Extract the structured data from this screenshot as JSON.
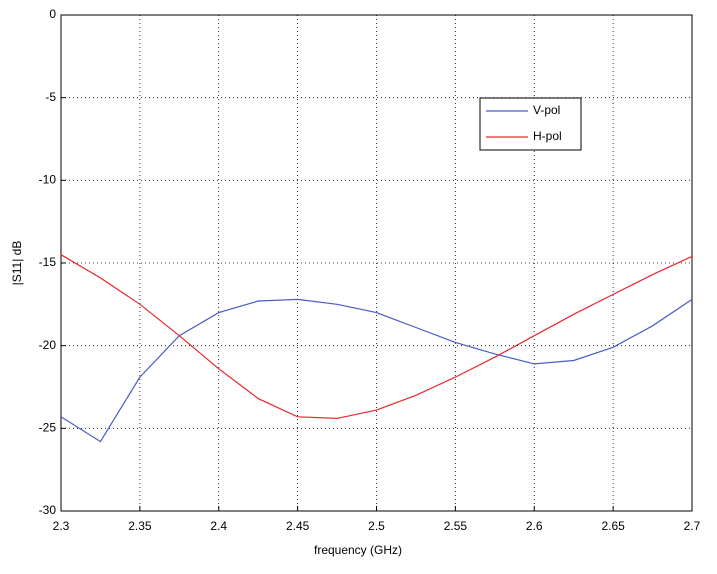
{
  "chart_data": {
    "type": "line",
    "xlabel": "frequency (GHz)",
    "ylabel": "|S11| dB",
    "x": [
      2.3,
      2.325,
      2.35,
      2.375,
      2.4,
      2.425,
      2.45,
      2.475,
      2.5,
      2.525,
      2.55,
      2.575,
      2.6,
      2.625,
      2.65,
      2.675,
      2.7
    ],
    "series": [
      {
        "name": "V-pol",
        "color": "#4a5bc4",
        "values": [
          -24.3,
          -25.8,
          -21.9,
          -19.4,
          -18.0,
          -17.3,
          -17.2,
          -17.5,
          -18.0,
          -18.9,
          -19.8,
          -20.5,
          -21.1,
          -20.9,
          -20.1,
          -18.8,
          -17.2
        ]
      },
      {
        "name": "H-pol",
        "color": "#e8272b",
        "values": [
          -14.5,
          -15.9,
          -17.5,
          -19.4,
          -21.4,
          -23.2,
          -24.3,
          -24.4,
          -23.9,
          -23.0,
          -21.9,
          -20.7,
          -19.4,
          -18.1,
          -16.9,
          -15.7,
          -14.6
        ]
      }
    ],
    "xlim": [
      2.3,
      2.7
    ],
    "xticks": [
      2.3,
      2.35,
      2.4,
      2.45,
      2.5,
      2.55,
      2.6,
      2.65,
      2.7
    ],
    "ylim": [
      -30,
      0
    ],
    "yticks": [
      -30,
      -25,
      -20,
      -15,
      -10,
      -5,
      0
    ],
    "grid": true
  }
}
